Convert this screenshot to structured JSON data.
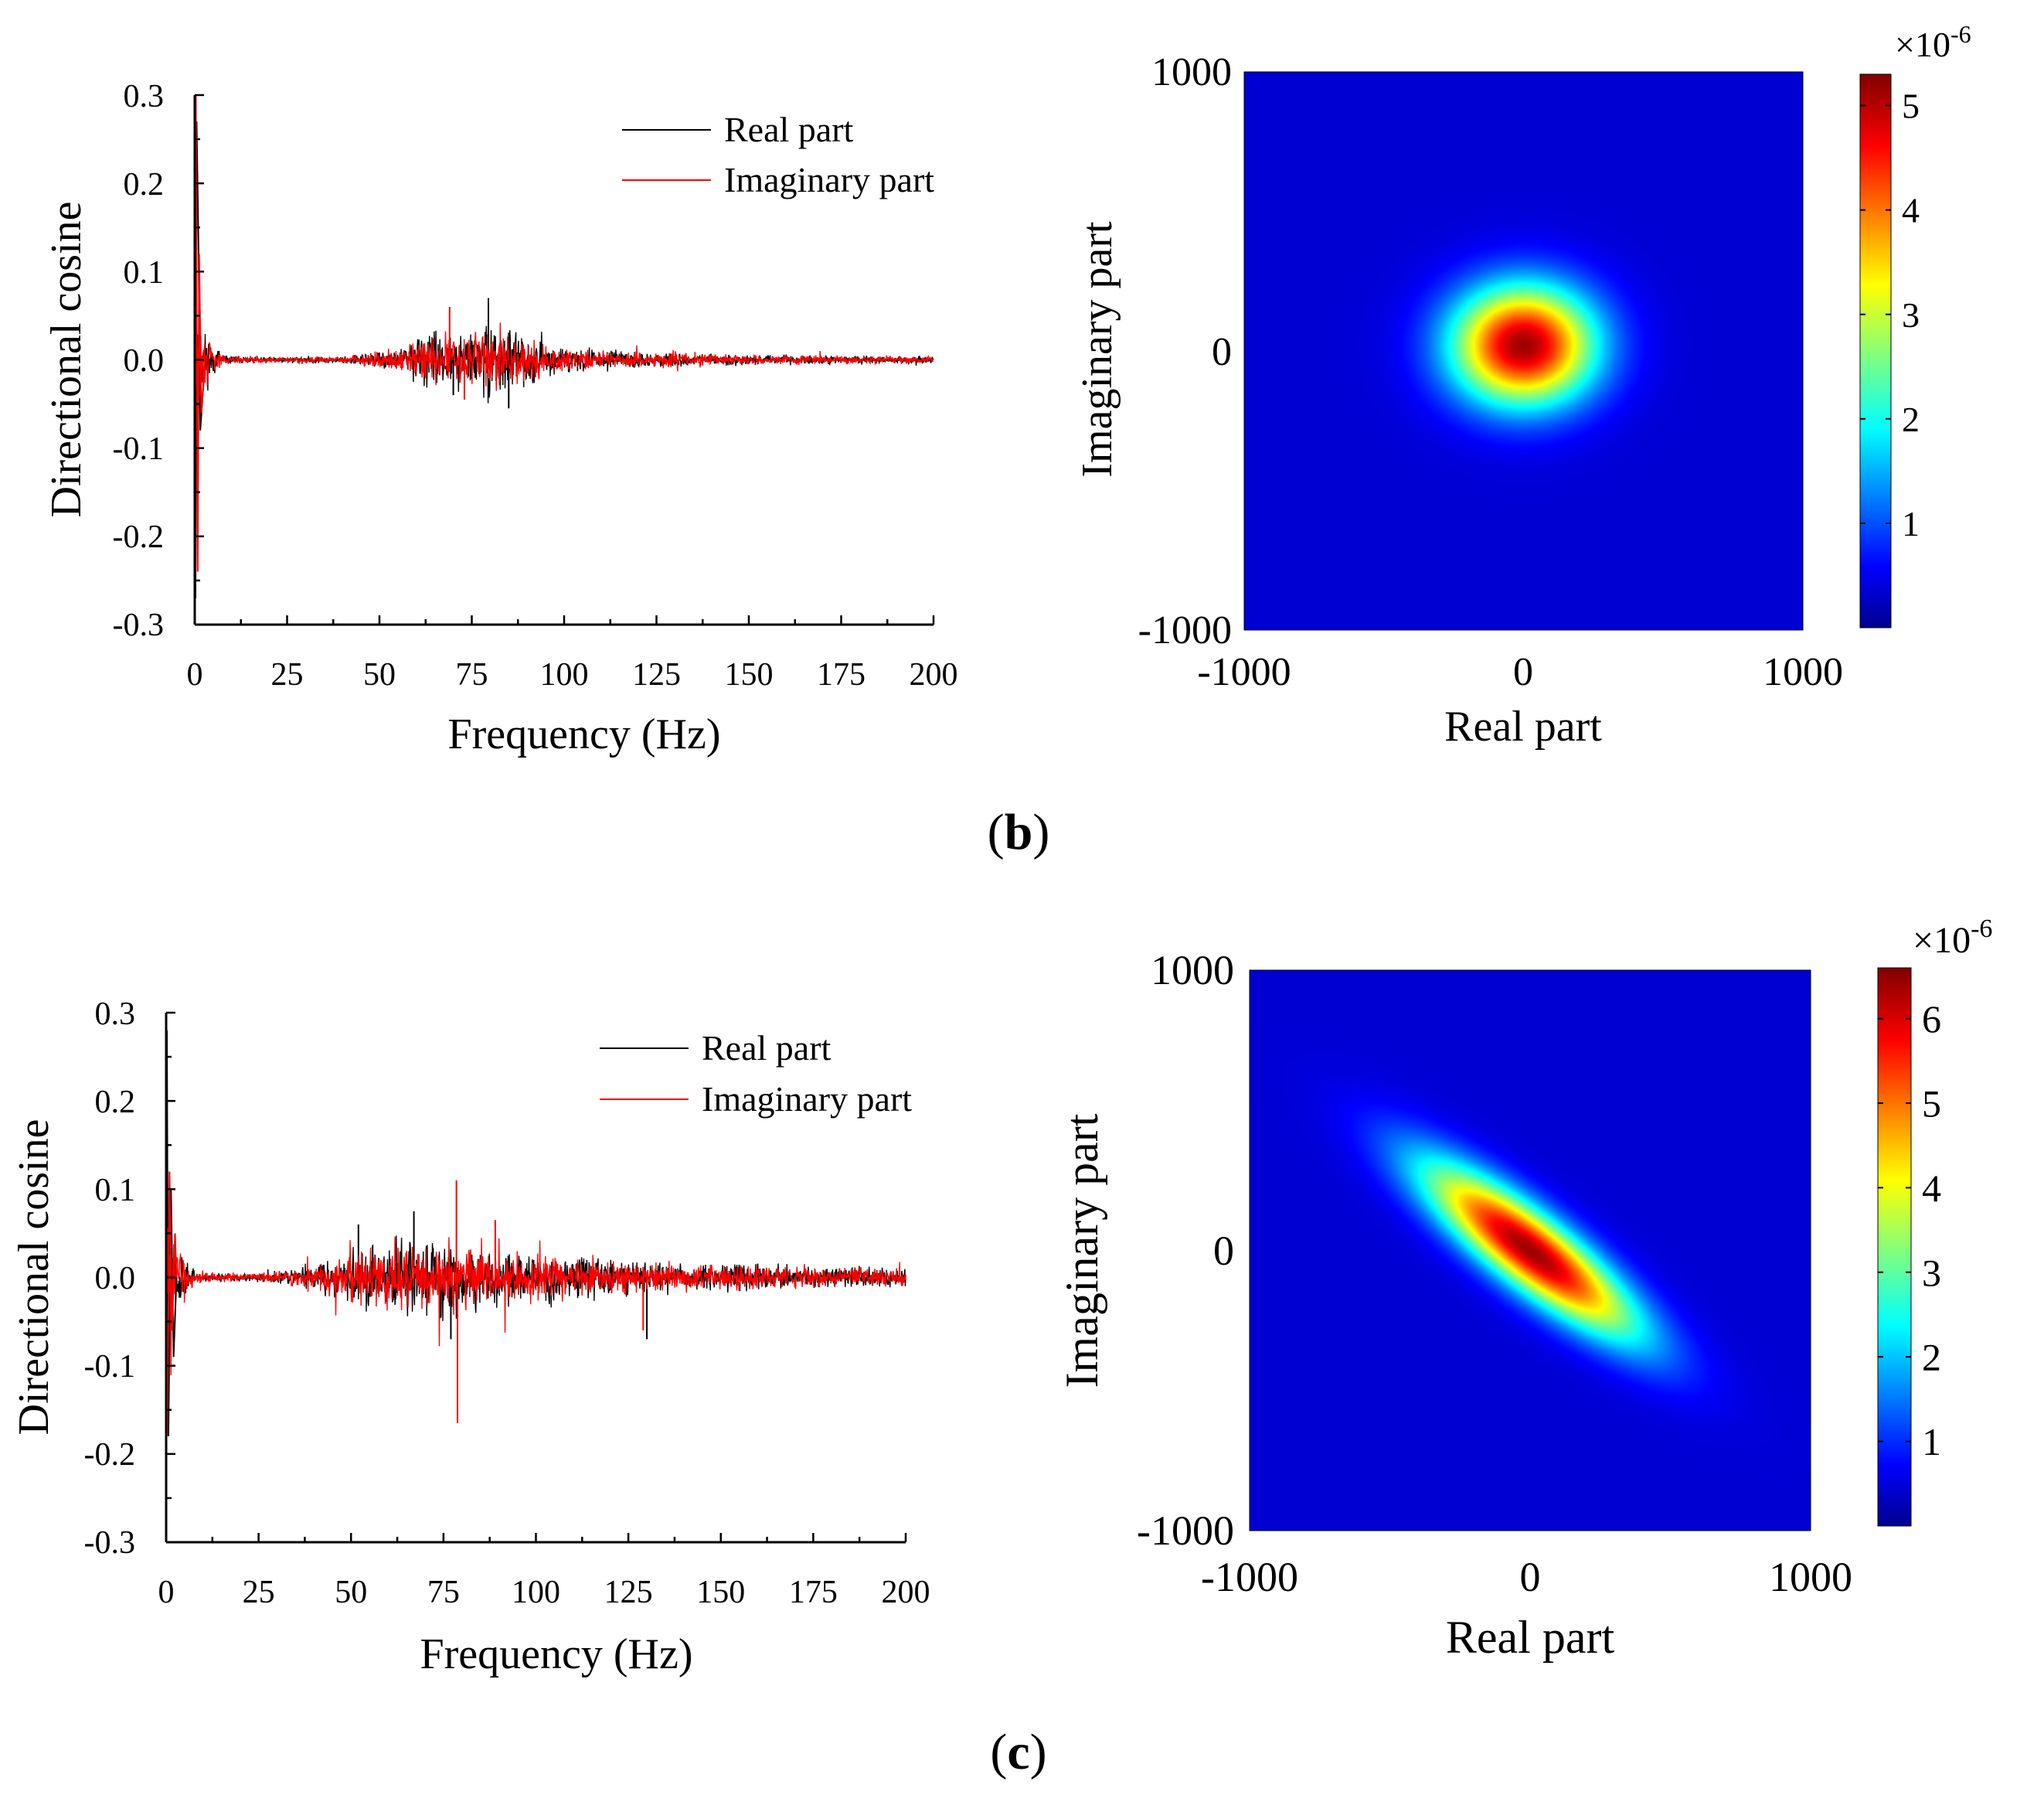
{
  "panel_labels": [
    {
      "open": "(",
      "letter": "b",
      "close": ")"
    },
    {
      "open": "(",
      "letter": "c",
      "close": ")"
    }
  ],
  "chart_data": [
    {
      "id": "b-left",
      "type": "line",
      "title": "",
      "xlabel": "Frequency (Hz)",
      "ylabel": "Directional cosine",
      "xlim": [
        0,
        200
      ],
      "ylim": [
        -0.3,
        0.3
      ],
      "xticks": [
        "0",
        "25",
        "50",
        "75",
        "100",
        "125",
        "150",
        "175",
        "200"
      ],
      "yticks": [
        "0.3",
        "0.2",
        "0.1",
        "0.0",
        "-0.1",
        "-0.2",
        "-0.3"
      ],
      "legend_position": "top-right",
      "series": [
        {
          "name": "Real part",
          "color": "#000000",
          "seed": 11,
          "spike": [
            {
              "x": 0.2,
              "y": -0.27
            },
            {
              "x": 0.5,
              "y": 0.27
            },
            {
              "x": 1.0,
              "y": 0.13
            },
            {
              "x": 1.5,
              "y": -0.08
            }
          ],
          "envelope": [
            [
              0,
              0.06
            ],
            [
              3,
              0.03
            ],
            [
              8,
              0.004
            ],
            [
              25,
              0.003
            ],
            [
              40,
              0.004
            ],
            [
              55,
              0.012
            ],
            [
              62,
              0.03
            ],
            [
              75,
              0.03
            ],
            [
              80,
              0.04
            ],
            [
              85,
              0.035
            ],
            [
              95,
              0.015
            ],
            [
              110,
              0.01
            ],
            [
              125,
              0.008
            ],
            [
              140,
              0.006
            ],
            [
              160,
              0.005
            ],
            [
              200,
              0.004
            ]
          ],
          "peaks": [
            {
              "x": 79.5,
              "y": 0.07
            },
            {
              "x": 85,
              "y": -0.055
            },
            {
              "x": 70,
              "y": -0.04
            }
          ]
        },
        {
          "name": "Imaginary part",
          "color": "#ff0000",
          "seed": 29,
          "spike": [
            {
              "x": 0.3,
              "y": 0.3
            },
            {
              "x": 0.8,
              "y": -0.24
            },
            {
              "x": 1.2,
              "y": 0.12
            },
            {
              "x": 1.8,
              "y": -0.06
            }
          ],
          "envelope": [
            [
              0,
              0.06
            ],
            [
              3,
              0.03
            ],
            [
              8,
              0.004
            ],
            [
              25,
              0.003
            ],
            [
              40,
              0.004
            ],
            [
              55,
              0.012
            ],
            [
              62,
              0.03
            ],
            [
              75,
              0.03
            ],
            [
              80,
              0.035
            ],
            [
              85,
              0.03
            ],
            [
              95,
              0.015
            ],
            [
              110,
              0.01
            ],
            [
              125,
              0.008
            ],
            [
              130,
              0.012
            ],
            [
              140,
              0.006
            ],
            [
              160,
              0.005
            ],
            [
              200,
              0.004
            ]
          ],
          "peaks": [
            {
              "x": 69,
              "y": 0.06
            },
            {
              "x": 73,
              "y": -0.045
            }
          ]
        }
      ]
    },
    {
      "id": "b-right",
      "type": "heatmap",
      "title": "",
      "xlabel": "Real part",
      "ylabel": "Imaginary part",
      "xlim": [
        -1000,
        1000
      ],
      "ylim": [
        -1000,
        1000
      ],
      "xticks": [
        "-1000",
        "0",
        "1000"
      ],
      "yticks": [
        "1000",
        "0",
        "-1000"
      ],
      "colorbar": {
        "min": 0,
        "max": 5.3,
        "ticks": [
          "1",
          "2",
          "3",
          "4",
          "5"
        ],
        "exponent_label": "×10",
        "exponent": "-6"
      },
      "gaussian": {
        "center_x": 0,
        "center_y": 20,
        "sigma_major": 180,
        "sigma_minor": 150,
        "angle_deg": 0,
        "peak": 5.3
      }
    },
    {
      "id": "c-left",
      "type": "line",
      "title": "",
      "xlabel": "Frequency (Hz)",
      "ylabel": "Directional cosine",
      "xlim": [
        0,
        200
      ],
      "ylim": [
        -0.3,
        0.3
      ],
      "xticks": [
        "0",
        "25",
        "50",
        "75",
        "100",
        "125",
        "150",
        "175",
        "200"
      ],
      "yticks": [
        "0.3",
        "0.2",
        "0.1",
        "0.0",
        "-0.1",
        "-0.2",
        "-0.3"
      ],
      "legend_position": "top-right",
      "series": [
        {
          "name": "Real part",
          "color": "#000000",
          "seed": 47,
          "spike": [
            {
              "x": 0.2,
              "y": 0.28
            },
            {
              "x": 0.6,
              "y": -0.18
            },
            {
              "x": 1.3,
              "y": 0.1
            },
            {
              "x": 2.0,
              "y": -0.09
            }
          ],
          "envelope": [
            [
              0,
              0.06
            ],
            [
              3,
              0.04
            ],
            [
              8,
              0.006
            ],
            [
              20,
              0.004
            ],
            [
              30,
              0.006
            ],
            [
              45,
              0.02
            ],
            [
              55,
              0.035
            ],
            [
              70,
              0.04
            ],
            [
              85,
              0.035
            ],
            [
              100,
              0.025
            ],
            [
              120,
              0.02
            ],
            [
              140,
              0.015
            ],
            [
              160,
              0.014
            ],
            [
              180,
              0.012
            ],
            [
              200,
              0.01
            ]
          ],
          "peaks": [
            {
              "x": 67,
              "y": 0.075
            },
            {
              "x": 52,
              "y": 0.06
            },
            {
              "x": 77,
              "y": -0.07
            },
            {
              "x": 130,
              "y": -0.07
            }
          ]
        },
        {
          "name": "Imaginary part",
          "color": "#ff0000",
          "seed": 83,
          "spike": [
            {
              "x": 0.3,
              "y": -0.18
            },
            {
              "x": 0.9,
              "y": 0.12
            },
            {
              "x": 1.6,
              "y": -0.06
            },
            {
              "x": 2.4,
              "y": 0.05
            }
          ],
          "envelope": [
            [
              0,
              0.06
            ],
            [
              3,
              0.04
            ],
            [
              8,
              0.006
            ],
            [
              20,
              0.004
            ],
            [
              30,
              0.006
            ],
            [
              45,
              0.02
            ],
            [
              55,
              0.035
            ],
            [
              70,
              0.04
            ],
            [
              85,
              0.035
            ],
            [
              100,
              0.025
            ],
            [
              120,
              0.02
            ],
            [
              140,
              0.015
            ],
            [
              160,
              0.014
            ],
            [
              180,
              0.012
            ],
            [
              200,
              0.01
            ]
          ],
          "peaks": [
            {
              "x": 78.5,
              "y": 0.11
            },
            {
              "x": 78.8,
              "y": -0.165
            },
            {
              "x": 89,
              "y": 0.065
            },
            {
              "x": 129,
              "y": -0.06
            }
          ]
        }
      ]
    },
    {
      "id": "c-right",
      "type": "heatmap",
      "title": "",
      "xlabel": "Real part",
      "ylabel": "Imaginary part",
      "xlim": [
        -1000,
        1000
      ],
      "ylim": [
        -1000,
        1000
      ],
      "xticks": [
        "-1000",
        "0",
        "1000"
      ],
      "yticks": [
        "1000",
        "0",
        "-1000"
      ],
      "colorbar": {
        "min": 0,
        "max": 6.6,
        "ticks": [
          "1",
          "2",
          "3",
          "4",
          "5",
          "6"
        ],
        "exponent_label": "×10",
        "exponent": "-6"
      },
      "gaussian": {
        "center_x": 0,
        "center_y": 0,
        "sigma_major": 330,
        "sigma_minor": 90,
        "angle_deg": -38,
        "peak": 6.6
      }
    }
  ]
}
